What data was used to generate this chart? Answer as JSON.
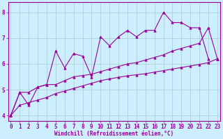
{
  "background_color": "#cceeff",
  "grid_color": "#aacccc",
  "line_color": "#990099",
  "x_values": [
    0,
    1,
    2,
    3,
    4,
    5,
    6,
    7,
    8,
    9,
    10,
    11,
    12,
    13,
    14,
    15,
    16,
    17,
    18,
    19,
    20,
    21,
    22,
    23
  ],
  "line_jagged": [
    4.0,
    4.9,
    4.4,
    5.1,
    5.2,
    6.5,
    5.85,
    6.4,
    6.3,
    5.5,
    7.05,
    6.7,
    7.05,
    7.3,
    7.05,
    7.3,
    7.3,
    8.0,
    7.6,
    7.6,
    7.4,
    7.4,
    6.2,
    null
  ],
  "line_upper": [
    4.0,
    4.9,
    4.9,
    5.1,
    5.2,
    5.2,
    5.35,
    5.5,
    5.55,
    5.6,
    5.7,
    5.8,
    5.9,
    6.0,
    6.05,
    6.15,
    6.25,
    6.35,
    6.5,
    6.6,
    6.7,
    6.8,
    7.4,
    6.2
  ],
  "line_lower": [
    4.0,
    4.4,
    4.5,
    4.6,
    4.7,
    4.85,
    4.95,
    5.05,
    5.15,
    5.25,
    5.35,
    5.42,
    5.48,
    5.54,
    5.58,
    5.62,
    5.68,
    5.74,
    5.8,
    5.86,
    5.92,
    5.98,
    6.05,
    6.2
  ],
  "ylim": [
    3.8,
    8.4
  ],
  "xlim": [
    -0.3,
    23.3
  ],
  "yticks": [
    4,
    5,
    6,
    7,
    8
  ],
  "xticks": [
    0,
    1,
    2,
    3,
    4,
    5,
    6,
    7,
    8,
    9,
    10,
    11,
    12,
    13,
    14,
    15,
    16,
    17,
    18,
    19,
    20,
    21,
    22,
    23
  ],
  "xlabel": "Windchill (Refroidissement éolien,°C)",
  "marker": "^",
  "line_width": 0.8,
  "marker_size": 2.5,
  "tick_fontsize": 5.5,
  "xlabel_fontsize": 5.5
}
